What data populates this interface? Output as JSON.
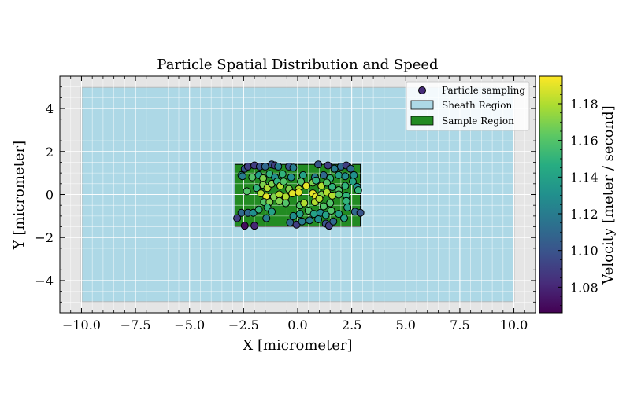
{
  "chart_data": {
    "type": "scatter",
    "title": "Particle Spatial Distribution and Speed",
    "xlabel": "X [micrometer]",
    "ylabel": "Y [micrometer]",
    "xlim": [
      -11.0,
      11.0
    ],
    "ylim": [
      -5.5,
      5.5
    ],
    "xticks": [
      -10.0,
      -7.5,
      -5.0,
      -2.5,
      0.0,
      2.5,
      5.0,
      7.5,
      10.0
    ],
    "xtick_labels": [
      "−10.0",
      "−7.5",
      "−5.0",
      "−2.5",
      "0.0",
      "2.5",
      "5.0",
      "7.5",
      "10.0"
    ],
    "yticks": [
      -4,
      -2,
      0,
      2,
      4
    ],
    "ytick_labels": [
      "−4",
      "−2",
      "0",
      "2",
      "4"
    ],
    "grid": true,
    "background_color": "#e5e5e5",
    "legend": {
      "placement": "top-right",
      "entries": [
        "Particle sampling",
        "Sheath Region",
        "Sample Region"
      ]
    },
    "regions": [
      {
        "name": "Sheath Region",
        "x": [
          -10,
          10
        ],
        "y": [
          -5,
          5
        ],
        "color": "#add8e6"
      },
      {
        "name": "Sample Region",
        "x": [
          -2.9,
          2.9
        ],
        "y": [
          -1.5,
          1.4
        ],
        "color": "#228b22"
      }
    ],
    "colorbar": {
      "label": "Velocity [meter / second]",
      "colormap": "viridis",
      "range": [
        1.066,
        1.195
      ],
      "ticks": [
        1.08,
        1.1,
        1.12,
        1.14,
        1.16,
        1.18
      ],
      "tick_labels": [
        "1.08",
        "1.10",
        "1.12",
        "1.14",
        "1.16",
        "1.18"
      ]
    },
    "series": [
      {
        "name": "Particle sampling",
        "points": [
          [
            -2.6,
            0.9,
            1.14
          ],
          [
            -2.45,
            1.2,
            1.1
          ],
          [
            -2.3,
            1.3,
            1.09
          ],
          [
            -2.0,
            1.35,
            1.09
          ],
          [
            -1.75,
            1.3,
            1.1
          ],
          [
            -1.5,
            1.3,
            1.11
          ],
          [
            -1.2,
            1.4,
            1.1
          ],
          [
            -1.05,
            1.35,
            1.09
          ],
          [
            -0.9,
            1.3,
            1.12
          ],
          [
            -0.4,
            1.3,
            1.1
          ],
          [
            -0.2,
            1.25,
            1.12
          ],
          [
            0.95,
            1.4,
            1.1
          ],
          [
            1.4,
            1.35,
            1.09
          ],
          [
            1.7,
            1.2,
            1.12
          ],
          [
            2.0,
            1.3,
            1.11
          ],
          [
            2.25,
            1.35,
            1.09
          ],
          [
            2.45,
            1.2,
            1.11
          ],
          [
            2.6,
            0.9,
            1.13
          ],
          [
            -2.55,
            0.85,
            1.12
          ],
          [
            -2.1,
            0.8,
            1.16
          ],
          [
            -1.8,
            0.9,
            1.14
          ],
          [
            -1.6,
            0.75,
            1.17
          ],
          [
            -1.3,
            0.95,
            1.15
          ],
          [
            -1.05,
            0.8,
            1.13
          ],
          [
            -0.7,
            0.95,
            1.15
          ],
          [
            -0.3,
            0.8,
            1.13
          ],
          [
            0.25,
            0.9,
            1.14
          ],
          [
            0.8,
            0.8,
            1.12
          ],
          [
            1.2,
            0.9,
            1.11
          ],
          [
            1.5,
            0.75,
            1.15
          ],
          [
            1.9,
            0.9,
            1.14
          ],
          [
            2.2,
            0.85,
            1.13
          ],
          [
            2.55,
            0.6,
            1.14
          ],
          [
            -2.35,
            0.15,
            1.16
          ],
          [
            -1.9,
            0.3,
            1.15
          ],
          [
            -1.6,
            0.45,
            1.17
          ],
          [
            -1.4,
            0.3,
            1.18
          ],
          [
            -1.2,
            0.5,
            1.17
          ],
          [
            -0.95,
            0.6,
            1.15
          ],
          [
            -0.8,
            0.4,
            1.18
          ],
          [
            -0.65,
            0.6,
            1.16
          ],
          [
            -0.4,
            0.25,
            1.17
          ],
          [
            0.05,
            0.25,
            1.18
          ],
          [
            0.15,
            0.6,
            1.16
          ],
          [
            0.4,
            0.4,
            1.19
          ],
          [
            0.7,
            0.55,
            1.17
          ],
          [
            0.85,
            0.65,
            1.15
          ],
          [
            1.1,
            0.4,
            1.18
          ],
          [
            1.35,
            0.55,
            1.16
          ],
          [
            1.6,
            0.35,
            1.15
          ],
          [
            1.9,
            0.2,
            1.16
          ],
          [
            2.2,
            0.4,
            1.15
          ],
          [
            2.75,
            0.35,
            1.13
          ],
          [
            2.8,
            0.2,
            1.15
          ],
          [
            -1.7,
            0.05,
            1.18
          ],
          [
            -1.45,
            -0.1,
            1.19
          ],
          [
            -1.1,
            -0.1,
            1.17
          ],
          [
            -0.85,
            0.0,
            1.18
          ],
          [
            -0.55,
            -0.1,
            1.18
          ],
          [
            -0.25,
            0.05,
            1.19
          ],
          [
            0.05,
            0.1,
            1.19
          ],
          [
            0.7,
            0.05,
            1.19
          ],
          [
            0.85,
            -0.1,
            1.19
          ],
          [
            1.1,
            0.0,
            1.17
          ],
          [
            1.35,
            0.1,
            1.18
          ],
          [
            1.6,
            -0.05,
            1.18
          ],
          [
            1.9,
            0.0,
            1.16
          ],
          [
            2.25,
            -0.05,
            1.15
          ],
          [
            -1.55,
            -0.35,
            1.16
          ],
          [
            -1.3,
            -0.35,
            1.17
          ],
          [
            -0.85,
            -0.3,
            1.17
          ],
          [
            -0.55,
            -0.4,
            1.16
          ],
          [
            0.1,
            -0.5,
            1.16
          ],
          [
            0.3,
            -0.4,
            1.18
          ],
          [
            0.8,
            -0.35,
            1.18
          ],
          [
            1.0,
            -0.2,
            1.18
          ],
          [
            1.2,
            -0.55,
            1.16
          ],
          [
            1.5,
            -0.4,
            1.16
          ],
          [
            2.25,
            -0.3,
            1.15
          ],
          [
            2.3,
            -0.6,
            1.14
          ],
          [
            -2.6,
            -0.85,
            1.11
          ],
          [
            -2.3,
            -0.85,
            1.11
          ],
          [
            -2.05,
            -0.85,
            1.13
          ],
          [
            -1.8,
            -0.7,
            1.15
          ],
          [
            -1.4,
            -0.6,
            1.15
          ],
          [
            -1.2,
            -0.8,
            1.14
          ],
          [
            -0.2,
            -1.0,
            1.13
          ],
          [
            0.1,
            -0.9,
            1.14
          ],
          [
            0.5,
            -0.75,
            1.16
          ],
          [
            0.75,
            -0.9,
            1.14
          ],
          [
            1.05,
            -0.85,
            1.13
          ],
          [
            1.3,
            -0.95,
            1.14
          ],
          [
            1.55,
            -0.75,
            1.16
          ],
          [
            1.9,
            -0.9,
            1.14
          ],
          [
            2.15,
            -1.1,
            1.14
          ],
          [
            2.65,
            -0.8,
            1.11
          ],
          [
            2.9,
            -0.85,
            1.1
          ],
          [
            -2.8,
            -1.1,
            1.09
          ],
          [
            -2.45,
            -1.45,
            1.07
          ],
          [
            -2.0,
            -1.45,
            1.08
          ],
          [
            -1.45,
            -1.1,
            1.12
          ],
          [
            -0.35,
            -1.3,
            1.11
          ],
          [
            -0.05,
            -1.4,
            1.09
          ],
          [
            0.2,
            -1.25,
            1.12
          ],
          [
            0.55,
            -1.2,
            1.12
          ],
          [
            0.95,
            -1.15,
            1.13
          ],
          [
            1.3,
            -1.35,
            1.1
          ],
          [
            1.45,
            -1.45,
            1.09
          ],
          [
            1.65,
            -1.25,
            1.11
          ]
        ]
      }
    ]
  }
}
